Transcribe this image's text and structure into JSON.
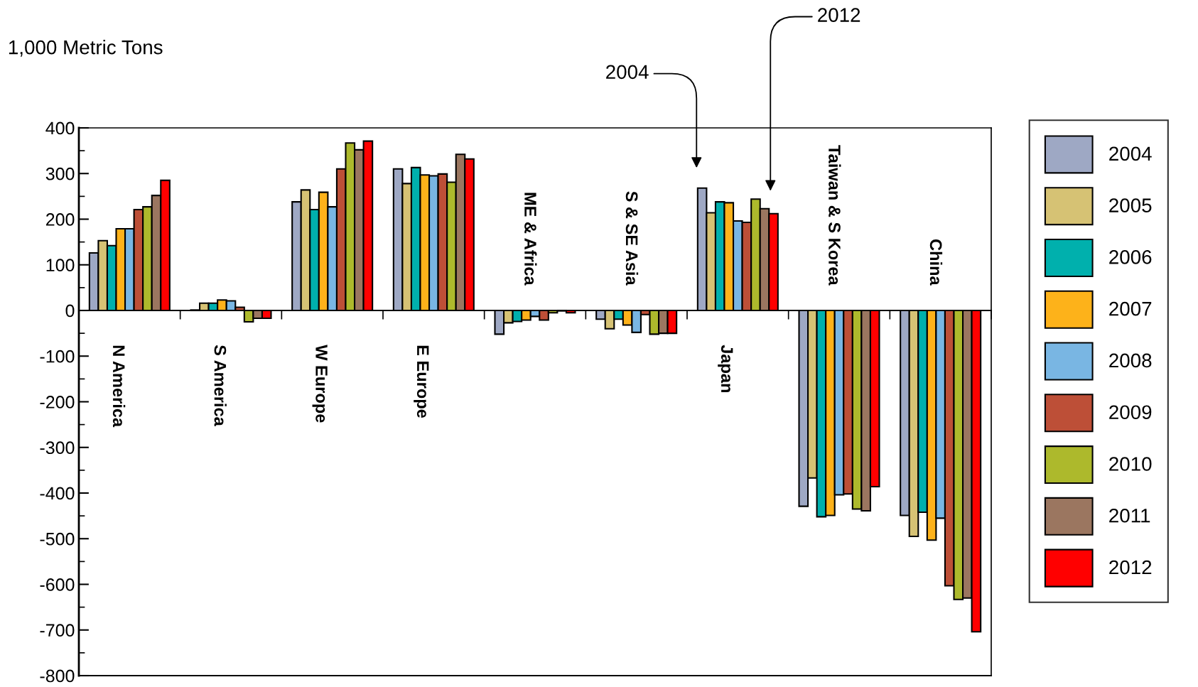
{
  "chart_data": {
    "type": "bar",
    "ylabel": "1,000 Metric Tons",
    "categories": [
      "N America",
      "S America",
      "W Europe",
      "E Europe",
      "ME & Africa",
      "S & SE Asia",
      "Japan",
      "Taiwan & S Korea",
      "China"
    ],
    "series": [
      {
        "name": "2004",
        "color": "#9ea8c4",
        "values": [
          126,
          1,
          238,
          310,
          -52,
          -19,
          268,
          -429,
          -449
        ]
      },
      {
        "name": "2005",
        "color": "#d6c274",
        "values": [
          153,
          16,
          264,
          278,
          -27,
          -40,
          214,
          -367,
          -495
        ]
      },
      {
        "name": "2006",
        "color": "#00b0ad",
        "values": [
          142,
          16,
          221,
          313,
          -24,
          -19,
          238,
          -452,
          -442
        ]
      },
      {
        "name": "2007",
        "color": "#fdb21a",
        "values": [
          179,
          23,
          259,
          297,
          -21,
          -32,
          236,
          -449,
          -503
        ]
      },
      {
        "name": "2008",
        "color": "#79b6e3",
        "values": [
          179,
          21,
          227,
          295,
          -13,
          -48,
          196,
          -404,
          -455
        ]
      },
      {
        "name": "2009",
        "color": "#bd4f37",
        "values": [
          221,
          7,
          310,
          299,
          -21,
          -9,
          193,
          -402,
          -603
        ]
      },
      {
        "name": "2010",
        "color": "#adb92c",
        "values": [
          227,
          -25,
          367,
          281,
          -5,
          -52,
          244,
          -435,
          -633
        ]
      },
      {
        "name": "2011",
        "color": "#9b7660",
        "values": [
          252,
          -17,
          352,
          342,
          -1,
          -50,
          223,
          -439,
          -630
        ]
      },
      {
        "name": "2012",
        "color": "#ff0000",
        "values": [
          285,
          -17,
          371,
          332,
          -5,
          -50,
          212,
          -386,
          -704
        ]
      }
    ],
    "ylim": [
      -800,
      400
    ],
    "yticks": [
      -800,
      -700,
      -600,
      -500,
      -400,
      -300,
      -200,
      -100,
      0,
      100,
      200,
      300,
      400
    ],
    "annotations": [
      "2004",
      "2012"
    ],
    "legend": "right",
    "grid": false
  }
}
